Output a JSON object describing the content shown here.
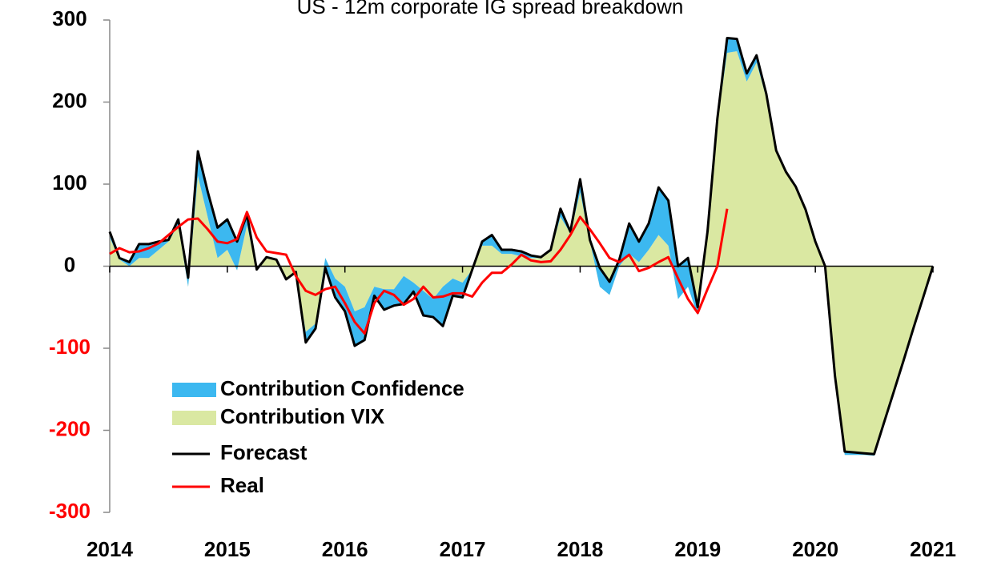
{
  "chart_data": {
    "type": "line",
    "title": "US - 12m corporate IG spread breakdown",
    "x": [
      2014,
      2014.083,
      2014.167,
      2014.25,
      2014.333,
      2014.417,
      2014.5,
      2014.583,
      2014.667,
      2014.75,
      2014.833,
      2014.917,
      2015,
      2015.083,
      2015.167,
      2015.25,
      2015.333,
      2015.417,
      2015.5,
      2015.583,
      2015.667,
      2015.75,
      2015.833,
      2015.917,
      2016,
      2016.083,
      2016.167,
      2016.25,
      2016.333,
      2016.417,
      2016.5,
      2016.583,
      2016.667,
      2016.75,
      2016.833,
      2016.917,
      2017,
      2017.083,
      2017.167,
      2017.25,
      2017.333,
      2017.417,
      2017.5,
      2017.583,
      2017.667,
      2017.75,
      2017.833,
      2017.917,
      2018,
      2018.083,
      2018.167,
      2018.25,
      2018.333,
      2018.417,
      2018.5,
      2018.583,
      2018.667,
      2018.75,
      2018.833,
      2018.917,
      2019,
      2019.083,
      2019.167,
      2019.25,
      2019.333,
      2019.417,
      2019.5,
      2019.583,
      2019.667,
      2019.75,
      2019.833,
      2019.917,
      2020,
      2020.083,
      2020.167,
      2020.25,
      2020.333,
      2020.417,
      2020.5,
      2020.583,
      2020.667,
      2020.75,
      2020.833,
      2020.917,
      2021
    ],
    "series": [
      {
        "name": "Contribution Confidence",
        "type": "area",
        "color": "#3cb8f0",
        "values": [
          7,
          2,
          5,
          17,
          17,
          10,
          2,
          7,
          11,
          30,
          31,
          37,
          37,
          35,
          13,
          0,
          0,
          0,
          0,
          0,
          -13,
          -6,
          -12,
          -23,
          -30,
          -42,
          -40,
          -11,
          -25,
          -20,
          -34,
          -11,
          -30,
          -22,
          -48,
          -21,
          -18,
          0,
          5,
          13,
          5,
          5,
          6,
          3,
          1,
          2,
          10,
          2,
          16,
          2,
          23,
          16,
          8,
          37,
          25,
          32,
          58,
          55,
          40,
          35,
          10,
          2,
          5,
          18,
          15,
          10,
          9,
          5,
          1,
          -3,
          2,
          0,
          0,
          0,
          0,
          4,
          3,
          2,
          2,
          0,
          0,
          0,
          0,
          0,
          0
        ]
      },
      {
        "name": "Contribution VIX",
        "type": "area",
        "color": "#dae8a2",
        "values": [
          35,
          8,
          0,
          10,
          10,
          20,
          30,
          50,
          -25,
          110,
          60,
          10,
          20,
          -5,
          50,
          -4,
          11,
          8,
          -16,
          -7,
          -80,
          -70,
          10,
          -15,
          -25,
          -55,
          -50,
          -25,
          -28,
          -28,
          -12,
          -20,
          -30,
          -40,
          -25,
          -15,
          -20,
          -4,
          25,
          25,
          15,
          15,
          12,
          10,
          10,
          18,
          60,
          40,
          90,
          30,
          -25,
          -35,
          0,
          15,
          5,
          20,
          38,
          25,
          -40,
          -25,
          -60,
          40,
          175,
          260,
          262,
          225,
          248,
          205,
          140,
          118,
          95,
          69,
          30,
          0,
          -134,
          -230,
          -230,
          -230,
          -231,
          -191,
          -153,
          -115,
          -76,
          -38,
          0
        ]
      },
      {
        "name": "Forecast",
        "type": "line",
        "color": "#000000",
        "values": [
          42,
          10,
          5,
          27,
          27,
          30,
          32,
          57,
          -14,
          140,
          91,
          47,
          57,
          30,
          63,
          -4,
          11,
          8,
          -16,
          -7,
          -93,
          -76,
          -2,
          -38,
          -55,
          -97,
          -90,
          -36,
          -53,
          -48,
          -46,
          -31,
          -60,
          -62,
          -73,
          -36,
          -38,
          -4,
          30,
          38,
          20,
          20,
          18,
          13,
          11,
          20,
          70,
          42,
          106,
          32,
          -2,
          -19,
          8,
          52,
          30,
          52,
          96,
          80,
          0,
          10,
          -50,
          42,
          180,
          278,
          277,
          235,
          257,
          210,
          141,
          115,
          97,
          69,
          30,
          0,
          -134,
          -226,
          -227,
          -228,
          -229,
          -191,
          -153,
          -115,
          -76,
          -38,
          0
        ]
      },
      {
        "name": "Real",
        "type": "line",
        "color": "#ff0000",
        "values": [
          15,
          22,
          17,
          18,
          22,
          28,
          38,
          48,
          57,
          58,
          45,
          30,
          28,
          33,
          66,
          35,
          18,
          16,
          14,
          -12,
          -30,
          -35,
          -28,
          -25,
          -45,
          -68,
          -82,
          -45,
          -30,
          -35,
          -47,
          -40,
          -25,
          -38,
          -37,
          -33,
          -33,
          -37,
          -20,
          -8,
          -8,
          2,
          14,
          7,
          5,
          6,
          20,
          38,
          60,
          45,
          28,
          10,
          5,
          14,
          -6,
          -2,
          5,
          11,
          -15,
          -40,
          -57,
          -28,
          0,
          70,
          null,
          null,
          null,
          null,
          null,
          null,
          null,
          null,
          null,
          null,
          null,
          null,
          null,
          null,
          null,
          null,
          null,
          null,
          null,
          null,
          null
        ]
      }
    ],
    "xlim": [
      2014,
      2021
    ],
    "xticks": [
      2014,
      2015,
      2016,
      2017,
      2018,
      2019,
      2020,
      2021
    ],
    "ylim": [
      -300,
      300
    ],
    "yticks": [
      -300,
      -200,
      -100,
      0,
      100,
      200,
      300
    ],
    "negative_tick_color": "#ff0000",
    "legend": "lower left"
  }
}
